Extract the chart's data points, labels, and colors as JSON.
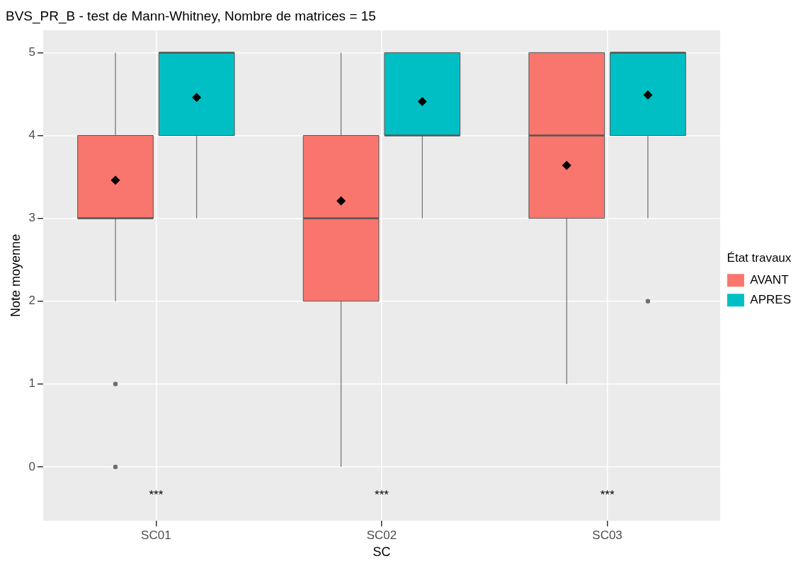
{
  "chart_data": {
    "type": "box",
    "title": "BVS_PR_B - test de Mann-Whitney, Nombre de matrices = 15",
    "xlabel": "SC",
    "ylabel": "Note moyenne",
    "legend_title": "État travaux",
    "legend": "right",
    "grid": true,
    "marker": "diamond",
    "categories": [
      "SC01",
      "SC02",
      "SC03"
    ],
    "ylim": [
      -0.65,
      5.27
    ],
    "yticks": [
      0,
      1,
      2,
      3,
      4,
      5
    ],
    "series": [
      {
        "name": "AVANT",
        "color": "#f8766d",
        "boxes": [
          {
            "low": 2,
            "q1": 3,
            "median": 3,
            "q3": 4,
            "high": 5,
            "mean": 3.46,
            "outliers": [
              1,
              0
            ]
          },
          {
            "low": 0,
            "q1": 2,
            "median": 3,
            "q3": 4,
            "high": 5,
            "mean": 3.21
          },
          {
            "low": 1,
            "q1": 3,
            "median": 4,
            "q3": 5,
            "high": 5,
            "mean": 3.64
          }
        ]
      },
      {
        "name": "APRES",
        "color": "#00bfc4",
        "boxes": [
          {
            "low": 3,
            "q1": 4,
            "median": 5,
            "q3": 5,
            "high": 5,
            "mean": 4.46
          },
          {
            "low": 3,
            "q1": 4,
            "median": 4,
            "q3": 5,
            "high": 5,
            "mean": 4.41
          },
          {
            "low": 3,
            "q1": 4,
            "median": 5,
            "q3": 5,
            "high": 5,
            "mean": 4.49,
            "outliers": [
              2
            ]
          }
        ]
      }
    ],
    "annotations": [
      "***",
      "***",
      "***"
    ]
  }
}
